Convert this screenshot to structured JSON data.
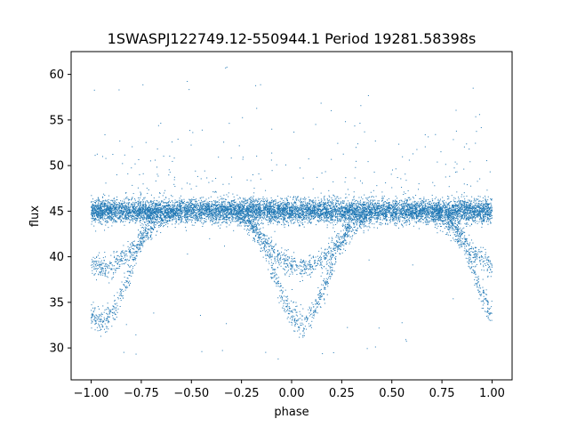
{
  "chart_data": {
    "type": "scatter",
    "title": "1SWASPJ122749.12-550944.1 Period 19281.58398s",
    "xlabel": "phase",
    "ylabel": "flux",
    "xlim": [
      -1.1,
      1.1
    ],
    "ylim": [
      26.5,
      62.5
    ],
    "x_ticks": [
      -1.0,
      -0.75,
      -0.5,
      -0.25,
      0.0,
      0.25,
      0.5,
      0.75,
      1.0
    ],
    "x_tick_labels": [
      "−1.00",
      "−0.75",
      "−0.50",
      "−0.25",
      "0.00",
      "0.25",
      "0.50",
      "0.75",
      "1.00"
    ],
    "y_ticks": [
      30,
      35,
      40,
      45,
      50,
      55,
      60
    ],
    "y_tick_labels": [
      "30",
      "35",
      "40",
      "45",
      "50",
      "55",
      "60"
    ],
    "grid": false,
    "legend": "none",
    "point_color": "#1f77b4",
    "series": [
      {
        "description_points": "phase-folded light curve, repeated over two cycles (phase -1 to 1)",
        "baseline_flux": 45.0,
        "baseline_scatter": 0.9,
        "dips": [
          {
            "center_phase": 0.05,
            "min_flux": 32.8,
            "half_width": 0.3
          },
          {
            "center_phase": -0.95,
            "min_flux": 32.8,
            "half_width": 0.3
          }
        ],
        "secondary_branch": [
          {
            "center_phase": 0.05,
            "min_flux": 38.8,
            "half_width": 0.4
          },
          {
            "center_phase": -0.95,
            "min_flux": 38.8,
            "half_width": 0.4
          }
        ],
        "outliers_range": [
          28,
          61
        ],
        "x_range": [
          -1.0,
          1.0
        ]
      }
    ]
  }
}
